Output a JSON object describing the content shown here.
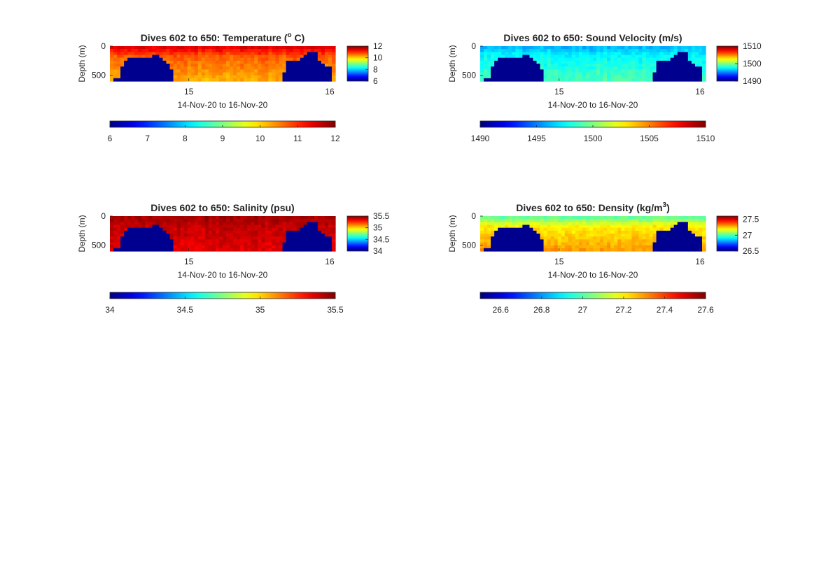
{
  "figure": {
    "background": "#ffffff",
    "land_color": "#00008f",
    "colormap": "jet"
  },
  "chart_data": [
    {
      "type": "heatmap",
      "variable": "temperature",
      "title": "Dives 602 to 650: Temperature (",
      "title_sup": "o",
      "title_suffix": " C)",
      "xlabel": "14-Nov-20 to 16-Nov-20",
      "ylabel": "Depth (m)",
      "x_ticks": [
        "15",
        "16"
      ],
      "y_ticks": [
        "0",
        "500"
      ],
      "ylim": [
        0,
        600
      ],
      "section_values": {
        "surface": 11.5,
        "mid": 10.7,
        "deep": 10.2
      },
      "color_range": [
        6,
        12
      ],
      "side_colorbar_ticks": [
        "12",
        "10",
        "8",
        "6"
      ],
      "bottom_colorbar_ticks": [
        "6",
        "7",
        "8",
        "9",
        "10",
        "11",
        "12"
      ]
    },
    {
      "type": "heatmap",
      "variable": "sound velocity",
      "title": "Dives 602 to 650: Sound Velocity (m/s)",
      "title_sup": "",
      "title_suffix": "",
      "xlabel": "14-Nov-20 to 16-Nov-20",
      "ylabel": "Depth (m)",
      "x_ticks": [
        "15",
        "16"
      ],
      "y_ticks": [
        "0",
        "500"
      ],
      "ylim": [
        0,
        600
      ],
      "section_values": {
        "surface": 1496,
        "mid": 1497.5,
        "deep": 1499
      },
      "color_range": [
        1490,
        1510
      ],
      "side_colorbar_ticks": [
        "1510",
        "1500",
        "1490"
      ],
      "bottom_colorbar_ticks": [
        "1490",
        "1495",
        "1500",
        "1505",
        "1510"
      ]
    },
    {
      "type": "heatmap",
      "variable": "salinity",
      "title": "Dives 602 to 650: Salinity (psu)",
      "title_sup": "",
      "title_suffix": "",
      "xlabel": "14-Nov-20 to 16-Nov-20",
      "ylabel": "Depth (m)",
      "x_ticks": [
        "15",
        "16"
      ],
      "y_ticks": [
        "0",
        "500"
      ],
      "ylim": [
        0,
        600
      ],
      "section_values": {
        "surface": 35.45,
        "mid": 35.4,
        "deep": 35.35
      },
      "color_range": [
        34,
        35.5
      ],
      "side_colorbar_ticks": [
        "35.5",
        "35",
        "34.5",
        "34"
      ],
      "bottom_colorbar_ticks": [
        "34",
        "34.5",
        "35",
        "35.5"
      ]
    },
    {
      "type": "heatmap",
      "variable": "density",
      "title": "Dives 602 to 650: Density (kg/m",
      "title_sup": "3",
      "title_suffix": ")",
      "xlabel": "14-Nov-20 to 16-Nov-20",
      "ylabel": "Depth (m)",
      "x_ticks": [
        "15",
        "16"
      ],
      "y_ticks": [
        "0",
        "500"
      ],
      "ylim": [
        0,
        600
      ],
      "section_values": {
        "surface": 27.0,
        "mid": 27.2,
        "deep": 27.3
      },
      "color_range": [
        26.5,
        27.6
      ],
      "side_colorbar_ticks": [
        "27.5",
        "27",
        "26.5"
      ],
      "bottom_colorbar_ticks": [
        "26.6",
        "26.8",
        "27",
        "27.2",
        "27.4",
        "27.6"
      ]
    }
  ]
}
